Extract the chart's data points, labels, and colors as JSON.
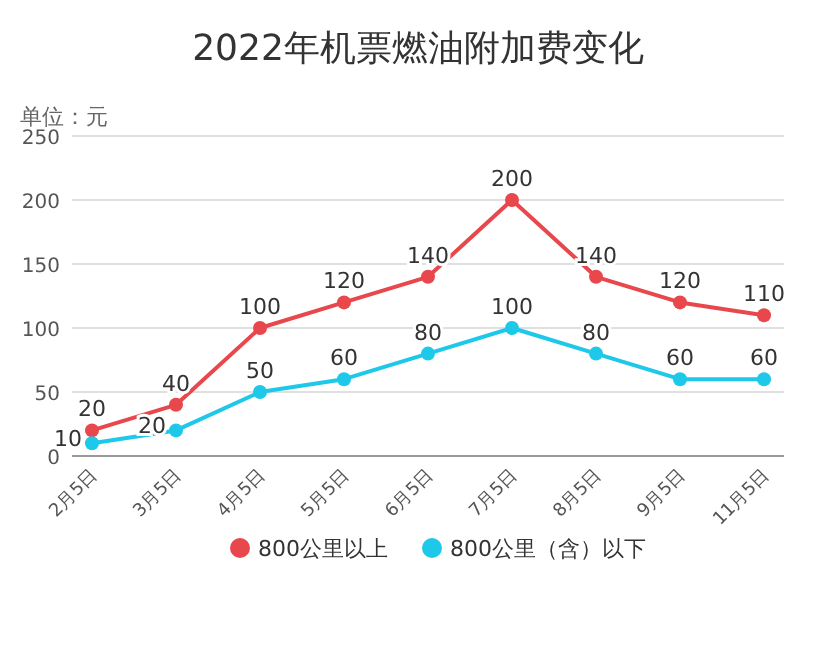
{
  "chart_data": {
    "type": "line",
    "title": "2022年机票燃油附加费变化",
    "ylabel": "单位：元",
    "categories": [
      "2月5日",
      "3月5日",
      "4月5日",
      "5月5日",
      "6月5日",
      "7月5日",
      "8月5日",
      "9月5日",
      "11月5日"
    ],
    "series": [
      {
        "name": "800公里以上",
        "color": "#e8474c",
        "values": [
          20,
          40,
          100,
          120,
          140,
          200,
          140,
          120,
          110
        ]
      },
      {
        "name": "800公里（含）以下",
        "color": "#1ec8e8",
        "values": [
          10,
          20,
          50,
          60,
          80,
          100,
          80,
          60,
          60
        ]
      }
    ],
    "ylim": [
      0,
      250
    ],
    "yticks": [
      0,
      50,
      100,
      150,
      200,
      250
    ],
    "grid": "y",
    "legend": "bottom",
    "marker": "circle",
    "data_labels": true
  }
}
